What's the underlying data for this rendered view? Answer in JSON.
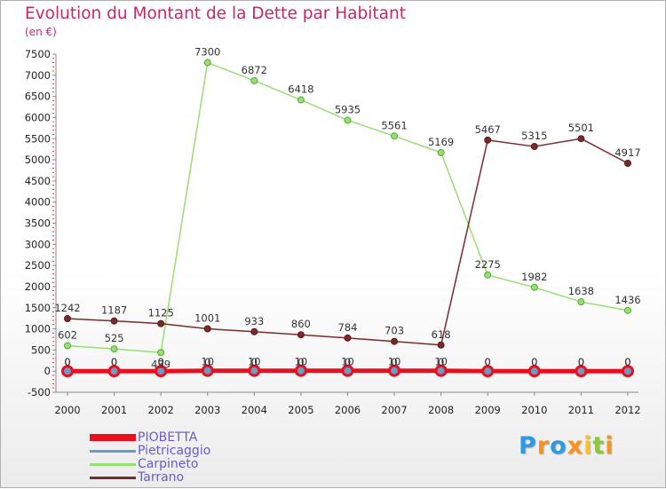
{
  "chart_data": {
    "type": "line",
    "title": "Evolution du Montant de la Dette par Habitant",
    "subtitle": "(en €)",
    "xlabel": "",
    "ylabel": "",
    "ylim": [
      -500,
      7500
    ],
    "y_ticks": [
      -500,
      0,
      500,
      1000,
      1500,
      2000,
      2500,
      3000,
      3500,
      4000,
      4500,
      5000,
      5500,
      6000,
      6500,
      7000,
      7500
    ],
    "categories": [
      "2000",
      "2001",
      "2002",
      "2003",
      "2004",
      "2005",
      "2006",
      "2007",
      "2008",
      "2009",
      "2010",
      "2011",
      "2012"
    ],
    "series": [
      {
        "name": "PIOBETTA",
        "color": "#e8101e",
        "values": [
          0,
          0,
          0,
          10,
          10,
          10,
          10,
          10,
          10,
          0,
          0,
          0,
          0
        ]
      },
      {
        "name": "Pietricaggio",
        "color": "#6a9cc9",
        "values": [
          0,
          0,
          0,
          0,
          0,
          0,
          0,
          0,
          0,
          0,
          0,
          0,
          0
        ]
      },
      {
        "name": "Carpineto",
        "color": "#99dd77",
        "values": [
          602,
          525,
          439,
          7300,
          6872,
          6418,
          5935,
          5561,
          5169,
          2275,
          1982,
          1638,
          1436
        ]
      },
      {
        "name": "Tarrano",
        "color": "#7a2a2a",
        "values": [
          1242,
          1187,
          1125,
          1001,
          933,
          860,
          784,
          703,
          618,
          5467,
          5315,
          5501,
          4917
        ]
      }
    ],
    "data_labels": {
      "PIOBETTA": [
        "0",
        "0",
        "0",
        "10",
        "10",
        "10",
        "10",
        "10",
        "10",
        "0",
        "0",
        "0",
        "0"
      ],
      "Pietricaggio": [
        "0",
        "0",
        "0",
        "0",
        "0",
        "0",
        "0",
        "0",
        "0",
        "0",
        "0",
        "0",
        "0"
      ],
      "Carpineto": [
        "602",
        "525",
        "439",
        "7300",
        "6872",
        "6418",
        "5935",
        "5561",
        "5169",
        "2275",
        "1982",
        "1638",
        "1436"
      ],
      "Tarrano": [
        "1242",
        "1187",
        "1125",
        "1001",
        "933",
        "860",
        "784",
        "703",
        "618",
        "5467",
        "5315",
        "5501",
        "4917"
      ]
    },
    "grid": false,
    "legend_position": "bottom-left"
  },
  "legend": {
    "items": [
      {
        "label": "PIOBETTA",
        "color": "#e8101e"
      },
      {
        "label": "Pietricaggio",
        "color": "#6a9cc9"
      },
      {
        "label": "Carpineto",
        "color": "#99dd77"
      },
      {
        "label": "Tarrano",
        "color": "#7a2a2a"
      }
    ]
  },
  "logo": {
    "letters": [
      "P",
      "r",
      "o",
      "x",
      "i",
      "t",
      "i"
    ],
    "colors": [
      "#2b9be3",
      "#f7941d",
      "#2b9be3",
      "#f7941d",
      "#f7c31d",
      "#8dc63f",
      "#f7941d"
    ]
  }
}
